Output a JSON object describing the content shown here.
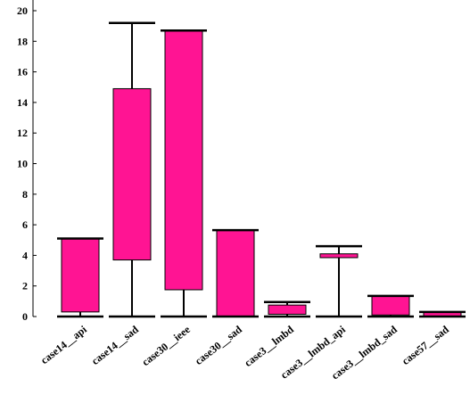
{
  "chart_data": {
    "type": "boxplot",
    "title": "",
    "xlabel": "",
    "ylabel": "",
    "ylim": [
      0,
      20
    ],
    "yticks": [
      0,
      2,
      4,
      6,
      8,
      10,
      12,
      14,
      16,
      18,
      20
    ],
    "grid": false,
    "legend": "none",
    "colors": {
      "box_fill": "#FF1493",
      "stroke": "#000000",
      "background": "#FFFFFF"
    },
    "categories": [
      "case14__api",
      "case14__sad",
      "case30__ieee",
      "case30__sad",
      "case3__lmbd",
      "case3__lmbd_api",
      "case3__lmbd_sad",
      "case57__sad"
    ],
    "boxes": [
      {
        "label": "case14__api",
        "min": 0,
        "q1": 0.3,
        "q3": 5.1,
        "max": 5.1
      },
      {
        "label": "case14__sad",
        "min": 0,
        "q1": 3.7,
        "q3": 14.9,
        "max": 19.2
      },
      {
        "label": "case30__ieee",
        "min": 0,
        "q1": 1.75,
        "q3": 18.7,
        "max": 18.7
      },
      {
        "label": "case30__sad",
        "min": 0,
        "q1": 0,
        "q3": 5.65,
        "max": 5.65
      },
      {
        "label": "case3__lmbd",
        "min": 0,
        "q1": 0.15,
        "q3": 0.75,
        "max": 0.95
      },
      {
        "label": "case3__lmbd_api",
        "min": 0,
        "q1": 3.85,
        "q3": 4.1,
        "max": 4.6
      },
      {
        "label": "case3__lmbd_sad",
        "min": 0,
        "q1": 0.1,
        "q3": 1.35,
        "max": 1.35
      },
      {
        "label": "case57__sad",
        "min": 0,
        "q1": 0,
        "q3": 0.3,
        "max": 0.3
      }
    ]
  }
}
